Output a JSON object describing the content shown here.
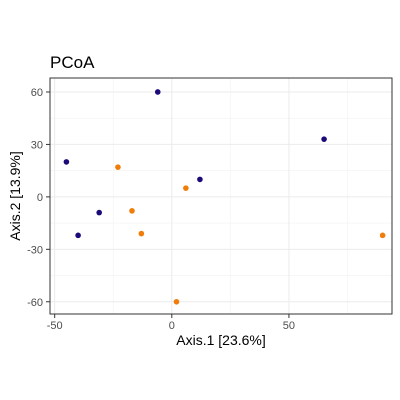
{
  "chart_data": {
    "type": "scatter",
    "title": "PCoA",
    "xlabel": "Axis.1   [23.6%]",
    "ylabel": "Axis.2   [13.9%]",
    "xlim": [
      -52,
      94
    ],
    "ylim": [
      -67,
      68
    ],
    "x_ticks": [
      -50,
      0,
      50
    ],
    "x_tick_labels": [
      "-50",
      "0",
      "50"
    ],
    "y_ticks": [
      -60,
      -30,
      0,
      30,
      60
    ],
    "y_tick_labels": [
      "-60",
      "-30",
      "0",
      "30",
      "60"
    ],
    "grid": true,
    "legend": "none",
    "series": [
      {
        "color": "#1a0a7a",
        "points": [
          {
            "x": -6,
            "y": 60
          },
          {
            "x": -45,
            "y": 20
          },
          {
            "x": -31,
            "y": -9
          },
          {
            "x": -40,
            "y": -22
          },
          {
            "x": 12,
            "y": 10
          },
          {
            "x": 65,
            "y": 33
          }
        ]
      },
      {
        "color": "#f07d0a",
        "points": [
          {
            "x": -23,
            "y": 17
          },
          {
            "x": -17,
            "y": -8
          },
          {
            "x": -13,
            "y": -21
          },
          {
            "x": 6,
            "y": 5
          },
          {
            "x": 2,
            "y": -60
          },
          {
            "x": 90,
            "y": -22
          }
        ]
      }
    ]
  }
}
